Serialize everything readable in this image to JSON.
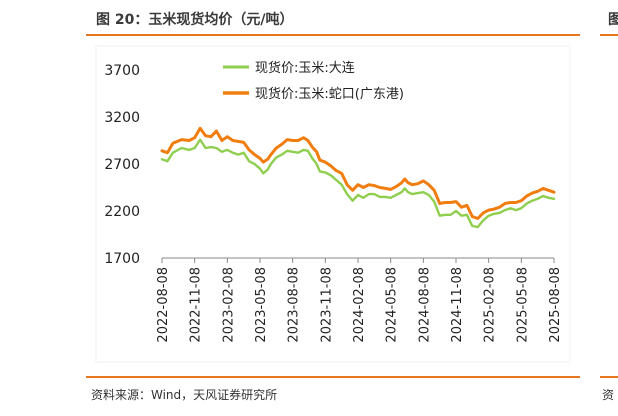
{
  "header": {
    "title": "图 20：玉米现货均价（元/吨）",
    "right_fragment": "图"
  },
  "footer": {
    "source": "资料来源：Wind，天风证券研究所",
    "right_fragment": "资"
  },
  "colors": {
    "accent": "#e87722",
    "dalian": "#8fce4f",
    "shekou": "#f07d0e"
  },
  "chart_data": {
    "type": "line",
    "title": "玉米现货均价（元/吨）",
    "xlabel": "",
    "ylabel": "",
    "ylim": [
      1700,
      3700
    ],
    "yticks": [
      1700,
      2200,
      2700,
      3200,
      3700
    ],
    "xlim": [
      0,
      36
    ],
    "xticks": [
      {
        "label": "2022-08-08",
        "x": 0
      },
      {
        "label": "2022-11-08",
        "x": 3
      },
      {
        "label": "2023-02-08",
        "x": 6
      },
      {
        "label": "2023-05-08",
        "x": 9
      },
      {
        "label": "2023-08-08",
        "x": 12
      },
      {
        "label": "2023-11-08",
        "x": 15
      },
      {
        "label": "2024-02-08",
        "x": 18
      },
      {
        "label": "2024-05-08",
        "x": 21
      },
      {
        "label": "2024-08-08",
        "x": 24
      },
      {
        "label": "2024-11-08",
        "x": 27
      },
      {
        "label": "2025-02-08",
        "x": 30
      },
      {
        "label": "2025-05-08",
        "x": 33
      },
      {
        "label": "2025-08-08",
        "x": 36
      }
    ],
    "legend_position": "top",
    "series": [
      {
        "name": "现货价:玉米:大连",
        "points": [
          [
            0,
            2750
          ],
          [
            0.5,
            2730
          ],
          [
            1,
            2820
          ],
          [
            1.8,
            2870
          ],
          [
            2.5,
            2850
          ],
          [
            3,
            2870
          ],
          [
            3.5,
            2960
          ],
          [
            4,
            2870
          ],
          [
            4.5,
            2880
          ],
          [
            5,
            2870
          ],
          [
            5.5,
            2830
          ],
          [
            6,
            2850
          ],
          [
            6.5,
            2820
          ],
          [
            7,
            2800
          ],
          [
            7.5,
            2820
          ],
          [
            8,
            2730
          ],
          [
            8.5,
            2700
          ],
          [
            9,
            2650
          ],
          [
            9.3,
            2600
          ],
          [
            9.7,
            2640
          ],
          [
            10,
            2700
          ],
          [
            10.5,
            2770
          ],
          [
            11,
            2800
          ],
          [
            11.5,
            2840
          ],
          [
            12,
            2830
          ],
          [
            12.5,
            2820
          ],
          [
            13,
            2850
          ],
          [
            13.4,
            2840
          ],
          [
            13.8,
            2760
          ],
          [
            14.2,
            2700
          ],
          [
            14.5,
            2620
          ],
          [
            15,
            2610
          ],
          [
            15.5,
            2580
          ],
          [
            16,
            2530
          ],
          [
            16.5,
            2480
          ],
          [
            17,
            2380
          ],
          [
            17.5,
            2310
          ],
          [
            18,
            2370
          ],
          [
            18.5,
            2340
          ],
          [
            19,
            2380
          ],
          [
            19.5,
            2380
          ],
          [
            20,
            2350
          ],
          [
            20.5,
            2350
          ],
          [
            21,
            2340
          ],
          [
            21.5,
            2370
          ],
          [
            22,
            2400
          ],
          [
            22.3,
            2440
          ],
          [
            22.6,
            2400
          ],
          [
            23,
            2380
          ],
          [
            23.5,
            2390
          ],
          [
            24,
            2400
          ],
          [
            24.5,
            2370
          ],
          [
            25,
            2300
          ],
          [
            25.5,
            2150
          ],
          [
            26,
            2160
          ],
          [
            26.5,
            2160
          ],
          [
            27,
            2200
          ],
          [
            27.5,
            2150
          ],
          [
            28,
            2160
          ],
          [
            28.5,
            2040
          ],
          [
            29,
            2030
          ],
          [
            29.5,
            2100
          ],
          [
            30,
            2150
          ],
          [
            30.5,
            2170
          ],
          [
            31,
            2180
          ],
          [
            31.5,
            2210
          ],
          [
            32,
            2230
          ],
          [
            32.5,
            2210
          ],
          [
            33,
            2230
          ],
          [
            33.5,
            2280
          ],
          [
            34,
            2310
          ],
          [
            34.5,
            2330
          ],
          [
            35,
            2360
          ],
          [
            35.5,
            2340
          ],
          [
            36,
            2330
          ]
        ]
      },
      {
        "name": "现货价:玉米:蛇口(广东港)",
        "points": [
          [
            0,
            2840
          ],
          [
            0.5,
            2820
          ],
          [
            1,
            2920
          ],
          [
            1.8,
            2960
          ],
          [
            2.5,
            2950
          ],
          [
            3,
            2980
          ],
          [
            3.5,
            3080
          ],
          [
            4,
            3000
          ],
          [
            4.5,
            2990
          ],
          [
            5,
            3050
          ],
          [
            5.5,
            2950
          ],
          [
            6,
            2990
          ],
          [
            6.5,
            2950
          ],
          [
            7,
            2940
          ],
          [
            7.5,
            2930
          ],
          [
            8,
            2850
          ],
          [
            8.5,
            2800
          ],
          [
            9,
            2760
          ],
          [
            9.3,
            2720
          ],
          [
            9.7,
            2750
          ],
          [
            10,
            2800
          ],
          [
            10.5,
            2870
          ],
          [
            11,
            2910
          ],
          [
            11.5,
            2960
          ],
          [
            12,
            2950
          ],
          [
            12.5,
            2950
          ],
          [
            13,
            2980
          ],
          [
            13.4,
            2950
          ],
          [
            13.8,
            2880
          ],
          [
            14.2,
            2830
          ],
          [
            14.5,
            2740
          ],
          [
            15,
            2720
          ],
          [
            15.5,
            2680
          ],
          [
            16,
            2630
          ],
          [
            16.5,
            2600
          ],
          [
            17,
            2480
          ],
          [
            17.5,
            2420
          ],
          [
            18,
            2480
          ],
          [
            18.5,
            2450
          ],
          [
            19,
            2480
          ],
          [
            19.5,
            2470
          ],
          [
            20,
            2450
          ],
          [
            20.5,
            2440
          ],
          [
            21,
            2430
          ],
          [
            21.5,
            2460
          ],
          [
            22,
            2500
          ],
          [
            22.3,
            2540
          ],
          [
            22.6,
            2500
          ],
          [
            23,
            2480
          ],
          [
            23.5,
            2490
          ],
          [
            24,
            2520
          ],
          [
            24.5,
            2480
          ],
          [
            25,
            2420
          ],
          [
            25.5,
            2280
          ],
          [
            26,
            2290
          ],
          [
            26.5,
            2290
          ],
          [
            27,
            2300
          ],
          [
            27.5,
            2240
          ],
          [
            28,
            2260
          ],
          [
            28.5,
            2140
          ],
          [
            29,
            2120
          ],
          [
            29.5,
            2180
          ],
          [
            30,
            2210
          ],
          [
            30.5,
            2220
          ],
          [
            31,
            2240
          ],
          [
            31.5,
            2280
          ],
          [
            32,
            2290
          ],
          [
            32.5,
            2290
          ],
          [
            33,
            2310
          ],
          [
            33.5,
            2360
          ],
          [
            34,
            2390
          ],
          [
            34.5,
            2410
          ],
          [
            35,
            2440
          ],
          [
            35.5,
            2420
          ],
          [
            36,
            2400
          ]
        ]
      }
    ]
  }
}
